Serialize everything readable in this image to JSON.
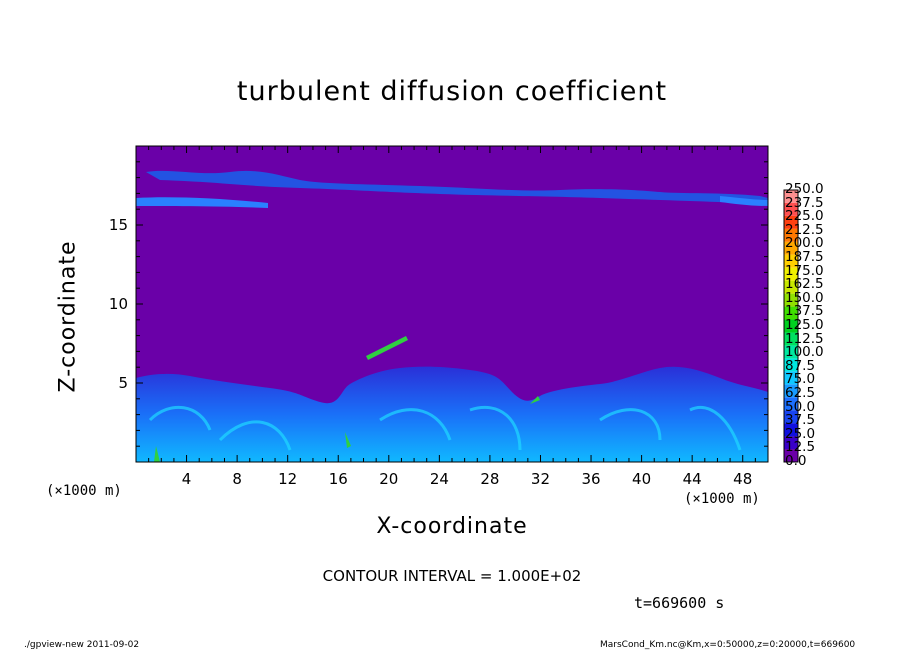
{
  "chart_data": {
    "type": "heatmap",
    "title": "turbulent diffusion coefficient",
    "xlabel": "X-coordinate",
    "ylabel": "Z-coordinate",
    "x_unit_label": "(×1000 m)",
    "x_ticks": [
      "4",
      "8",
      "12",
      "16",
      "20",
      "24",
      "28",
      "32",
      "36",
      "40",
      "44",
      "48"
    ],
    "x_tick_values": [
      4,
      8,
      12,
      16,
      20,
      24,
      28,
      32,
      36,
      40,
      44,
      48
    ],
    "y_ticks": [
      "5",
      "10",
      "15"
    ],
    "y_tick_values": [
      5,
      10,
      15
    ],
    "xlim": [
      0,
      50
    ],
    "ylim": [
      0,
      20
    ],
    "colorbar_levels": [
      "0.0",
      "12.5",
      "25.0",
      "37.5",
      "50.0",
      "62.5",
      "75.0",
      "87.5",
      "100.0",
      "112.5",
      "125.0",
      "137.5",
      "150.0",
      "162.5",
      "175.0",
      "187.5",
      "200.0",
      "212.5",
      "225.0",
      "237.5",
      "250.0"
    ],
    "colorbar_colors": [
      "#6a00a8",
      "#3a00c8",
      "#1010e0",
      "#1844f0",
      "#1c70ff",
      "#189cff",
      "#10c8ff",
      "#00e8e0",
      "#00e8a0",
      "#00e060",
      "#00d020",
      "#40e000",
      "#90e000",
      "#c8e800",
      "#f0f000",
      "#ffd000",
      "#ffa800",
      "#ff7800",
      "#ff4010",
      "#ff5050",
      "#ff9090"
    ],
    "background_value": "0.0",
    "contour_interval": "CONTOUR INTERVAL = 1.000E+02",
    "time_label": "t=669600 s"
  },
  "footer": {
    "left": "./gpview-new   2011-09-02",
    "right": "MarsCond_Km.nc@Km,x=0:50000,z=0:20000,t=669600"
  }
}
